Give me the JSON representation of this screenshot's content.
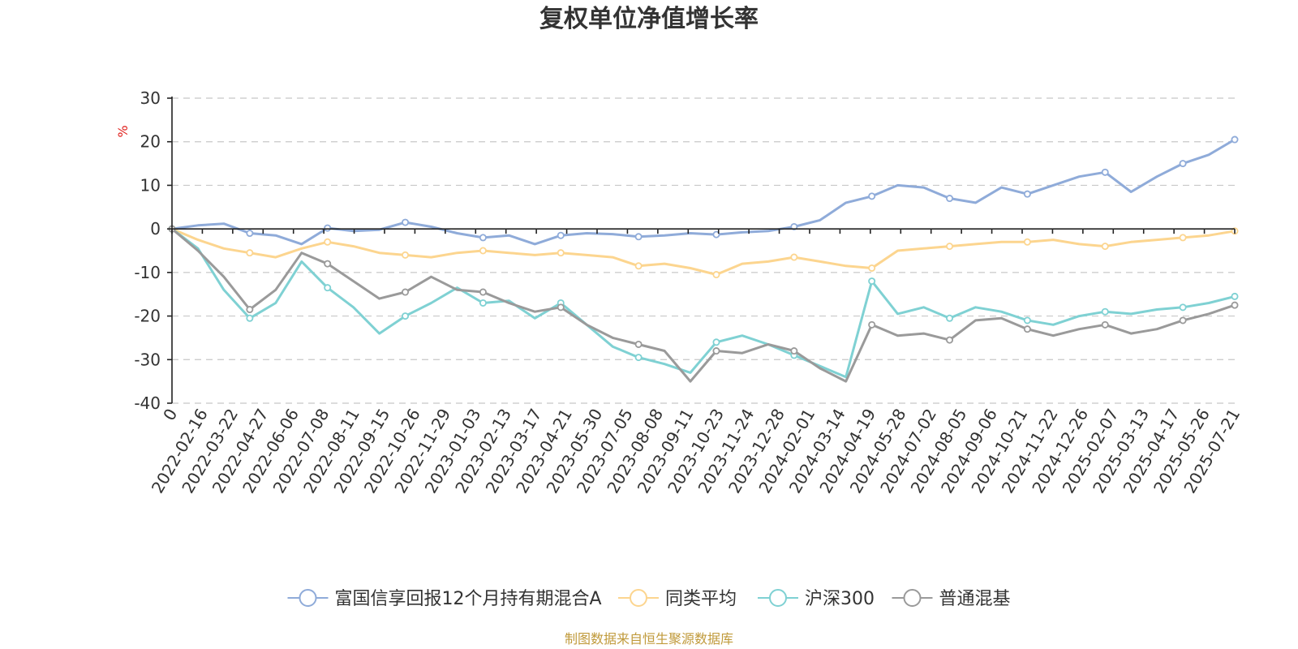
{
  "chart_data": {
    "type": "line",
    "title": "复权单位净值增长率",
    "ylabel": "%",
    "ylim": [
      -40,
      30
    ],
    "yticks": [
      "30",
      "20",
      "10",
      "0",
      "-10",
      "-20",
      "-30",
      "-40"
    ],
    "ytick_values": [
      30,
      20,
      10,
      0,
      -10,
      -20,
      -30,
      -40
    ],
    "x_start_label": "0",
    "x_tick_labels": [
      "2022-02-16",
      "2022-03-22",
      "2022-04-27",
      "2022-06-06",
      "2022-07-08",
      "2022-08-11",
      "2022-09-15",
      "2022-10-26",
      "2022-11-29",
      "2023-01-03",
      "2023-02-13",
      "2023-03-17",
      "2023-04-21",
      "2023-05-30",
      "2023-07-05",
      "2023-08-08",
      "2023-09-11",
      "2023-10-23",
      "2023-11-24",
      "2023-12-28",
      "2024-02-01",
      "2024-03-14",
      "2024-04-19",
      "2024-05-28",
      "2024-07-02",
      "2024-08-05",
      "2024-09-06",
      "2024-10-21",
      "2024-11-22",
      "2024-12-26",
      "2025-02-07",
      "2025-03-13",
      "2025-04-17",
      "2025-05-26",
      "2025-07-21"
    ],
    "grid": true,
    "legend_position": "bottom-center",
    "series": [
      {
        "name": "富国信享回报12个月持有期混合A",
        "color": "#8fabd9",
        "values": [
          0,
          0.8,
          1.2,
          -1.0,
          -1.5,
          -3.5,
          0.2,
          -0.5,
          -0.2,
          1.5,
          0.5,
          -1.0,
          -2.0,
          -1.5,
          -3.5,
          -1.5,
          -1.0,
          -1.2,
          -1.8,
          -1.5,
          -1.0,
          -1.3,
          -0.8,
          -0.5,
          0.5,
          2.0,
          6.0,
          7.5,
          10.0,
          9.5,
          7.0,
          6.0,
          9.5,
          8.0,
          10.0,
          12.0,
          13.0,
          8.5,
          12.0,
          15.0,
          17.0,
          20.5
        ]
      },
      {
        "name": "同类平均",
        "color": "#fcd58f",
        "values": [
          0,
          -2.5,
          -4.5,
          -5.5,
          -6.5,
          -4.5,
          -3.0,
          -4.0,
          -5.5,
          -6.0,
          -6.5,
          -5.5,
          -5.0,
          -5.5,
          -6.0,
          -5.5,
          -6.0,
          -6.5,
          -8.5,
          -8.0,
          -9.0,
          -10.5,
          -8.0,
          -7.5,
          -6.5,
          -7.5,
          -8.5,
          -9.0,
          -5.0,
          -4.5,
          -4.0,
          -3.5,
          -3.0,
          -3.0,
          -2.5,
          -3.5,
          -4.0,
          -3.0,
          -2.5,
          -2.0,
          -1.5,
          -0.5
        ]
      },
      {
        "name": "沪深300",
        "color": "#7fd1d3",
        "values": [
          0,
          -4.5,
          -14.0,
          -20.5,
          -17.0,
          -7.5,
          -13.5,
          -18.0,
          -24.0,
          -20.0,
          -17.0,
          -13.5,
          -17.0,
          -16.5,
          -20.5,
          -17.0,
          -22.0,
          -27.0,
          -29.5,
          -31.0,
          -33.0,
          -26.0,
          -24.5,
          -26.5,
          -29.0,
          -31.5,
          -34.0,
          -12.0,
          -19.5,
          -18.0,
          -20.5,
          -18.0,
          -19.0,
          -21.0,
          -22.0,
          -20.0,
          -19.0,
          -19.5,
          -18.5,
          -18.0,
          -17.0,
          -15.5
        ]
      },
      {
        "name": "普通混基",
        "color": "#9a9a9a",
        "values": [
          0,
          -5.0,
          -11.0,
          -18.5,
          -14.0,
          -5.5,
          -8.0,
          -12.0,
          -16.0,
          -14.5,
          -11.0,
          -14.0,
          -14.5,
          -17.0,
          -19.0,
          -18.0,
          -22.0,
          -25.0,
          -26.5,
          -28.0,
          -35.0,
          -28.0,
          -28.5,
          -26.5,
          -28.0,
          -32.0,
          -35.0,
          -22.0,
          -24.5,
          -24.0,
          -25.5,
          -21.0,
          -20.5,
          -23.0,
          -24.5,
          -23.0,
          -22.0,
          -24.0,
          -23.0,
          -21.0,
          -19.5,
          -17.5
        ]
      }
    ],
    "source_note": "制图数据来自恒生聚源数据库"
  }
}
